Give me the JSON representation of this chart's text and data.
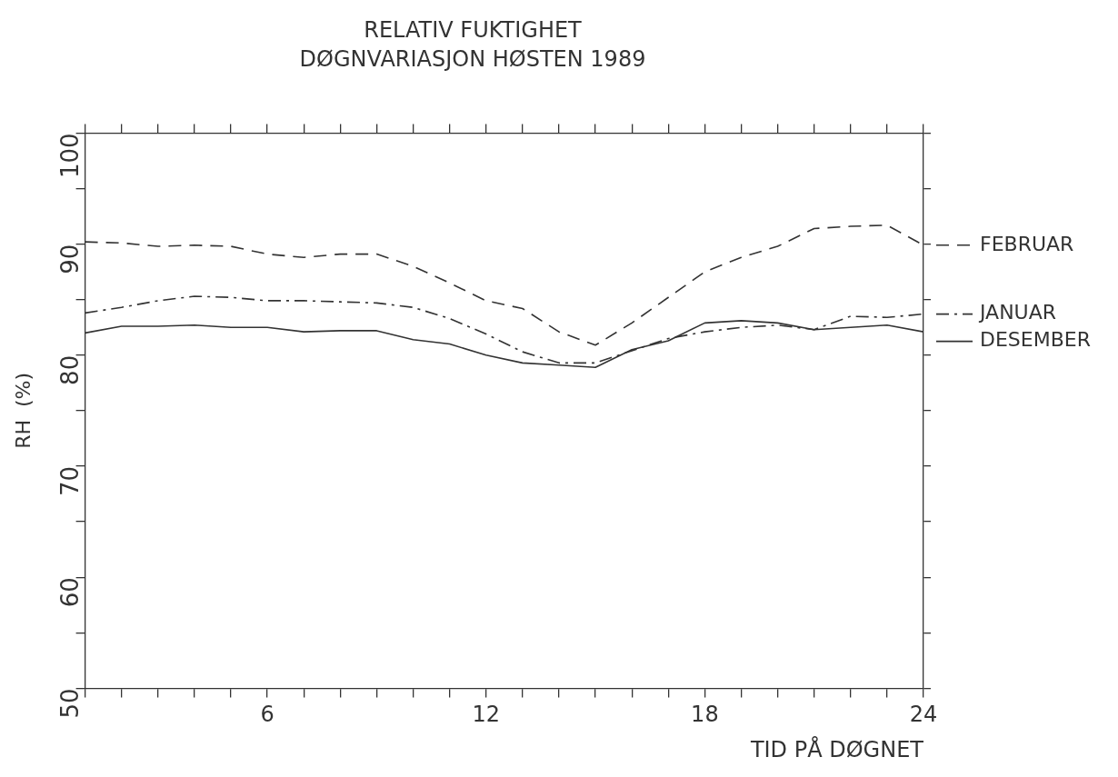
{
  "chart_data": {
    "type": "line",
    "title": "RELATIV FUKTIGHET",
    "subtitle": "DØGNVARIASJON HØSTEN 1989",
    "xlabel": "TID PÅ DØGNET",
    "ylabel": "RH  (%)",
    "x": [
      1,
      2,
      3,
      4,
      5,
      6,
      7,
      8,
      9,
      10,
      11,
      12,
      13,
      14,
      15,
      16,
      17,
      18,
      19,
      20,
      21,
      22,
      23,
      24
    ],
    "series": [
      {
        "name": "FEBRUAR",
        "color": "#333333",
        "line_style": "dashed",
        "values": [
          90.2,
          90.1,
          89.8,
          89.9,
          89.8,
          89.1,
          88.8,
          89.1,
          89.1,
          88.0,
          86.5,
          84.9,
          84.2,
          82.1,
          80.9,
          82.9,
          85.2,
          87.5,
          88.8,
          89.8,
          91.4,
          91.6,
          91.7,
          89.9
        ]
      },
      {
        "name": "JANUAR",
        "color": "#333333",
        "line_style": "dashdot",
        "values": [
          83.8,
          84.3,
          84.9,
          85.3,
          85.2,
          84.9,
          84.9,
          84.8,
          84.7,
          84.3,
          83.3,
          81.9,
          80.3,
          79.3,
          79.3,
          80.4,
          81.5,
          82.1,
          82.5,
          82.7,
          82.3,
          83.5,
          83.4,
          83.7
        ]
      },
      {
        "name": "DESEMBER",
        "color": "#333333",
        "line_style": "solid",
        "values": [
          82.0,
          82.6,
          82.6,
          82.7,
          82.5,
          82.5,
          82.1,
          82.2,
          82.2,
          81.4,
          81.0,
          80.0,
          79.3,
          79.1,
          78.9,
          80.5,
          81.3,
          82.9,
          83.1,
          82.9,
          82.3,
          82.5,
          82.7,
          82.1
        ]
      }
    ],
    "xlim": [
      1,
      24
    ],
    "xticks": [
      {
        "value": 1,
        "label": null
      },
      {
        "value": 2,
        "label": null
      },
      {
        "value": 3,
        "label": null
      },
      {
        "value": 4,
        "label": null
      },
      {
        "value": 5,
        "label": null
      },
      6,
      {
        "value": 7,
        "label": null
      },
      {
        "value": 8,
        "label": null
      },
      {
        "value": 9,
        "label": null
      },
      {
        "value": 10,
        "label": null
      },
      {
        "value": 11,
        "label": null
      },
      12,
      {
        "value": 13,
        "label": null
      },
      {
        "value": 14,
        "label": null
      },
      {
        "value": 15,
        "label": null
      },
      {
        "value": 16,
        "label": null
      },
      {
        "value": 17,
        "label": null
      },
      18,
      {
        "value": 19,
        "label": null
      },
      {
        "value": 20,
        "label": null
      },
      {
        "value": 21,
        "label": null
      },
      {
        "value": 22,
        "label": null
      },
      {
        "value": 23,
        "label": null
      },
      24
    ],
    "ylim": [
      50,
      100
    ],
    "yticks": [
      50,
      {
        "value": 55,
        "label": null
      },
      60,
      {
        "value": 65,
        "label": null
      },
      70,
      {
        "value": 75,
        "label": null
      },
      80,
      {
        "value": 85,
        "label": null
      },
      90,
      {
        "value": 95,
        "label": null
      },
      100
    ],
    "marker": "none",
    "legend": "right"
  }
}
